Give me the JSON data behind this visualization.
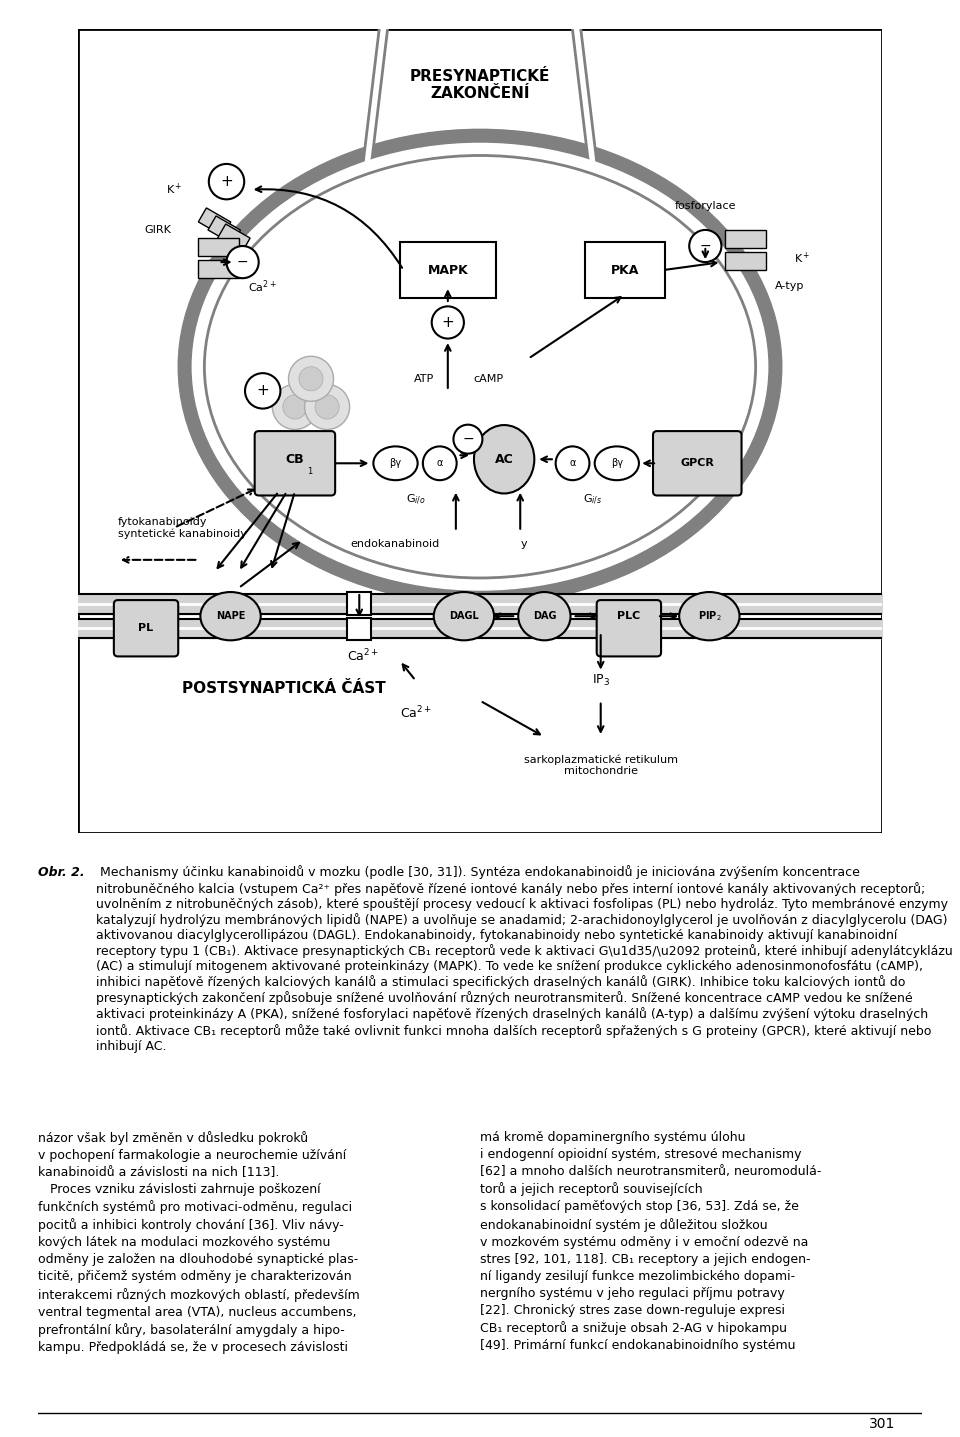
{
  "bg_color": "#ffffff",
  "border_color": "#000000",
  "page_number": "301",
  "presynaptic_label": "PRESYNAPTICKÉ\nZAKONČENÍ",
  "postsynaptic_label": "POSTSYNAPTICKÁ ČÁST",
  "caption_bold": "Obr. 2.",
  "caption_text": " Mechanismy účinku kanabinoidů v mozku (podle [30, 31]). Syntéza endokanabinoidů je iniciována zvýšením koncentrace nitrobuněčného kalcia (vstupem Ca²⁺ přes napěťově řízené iontové kanály nebo přes interní iontové kanály aktivovaných receptorů; uvolněním z nitrobuněčných zásob), které spouštějí procesy vedoucí k aktivaci fosfolipas (PL) nebo hydroláz. Tyto membránové enzymy katalyzují hydrolýzu membránových lipidů (NAPE) a uvolnůuje se anadamid; 2-arachidonoylglycerol je uvolněován z diacylglycerolu (DAG) aktivovanou diacylglycerollipázou (DAGL). Endokanabinoidy, fytokanabinoidy nebo syntetické kanabinoidy aktivují kanabinoidní receptory typu 1 (CB₁). Aktivace presynaptických CB₁ receptorů vede k aktivaci Gᴵ/ₒ proteinů, které inhibují adenylátcyklázu (AC) a stimulují mitogenem aktivované proteinkiny (MAPK). To vede ke snížení produkce cyklického adenosinmonosfotu (cAMP), inhibici napěťově řízených kalciových kanálů a stimulaci specifických draselnych kanálů (GIRK). Inhibice toku kalciových iontů do presynaptických zakončení způsobuje snížené uvolněování různých neurotransmiterů. Snížené koncentrace cAMP vedou ke snížené aktivaci proteinkiny A (PKA), snížené fosforylaci napěťově řízených draselnych kanálů (A-typ) a dalšímu zvýšení výtoku draselnych iontů. Aktivace CB₁ receptorů může také ovlivnit funkci mnoha dalších receptorů spřažených s G proteiny (GPCR), které aktivují nebo inhibují AC.",
  "col1_text": "názor však byl změněn v důsledku pokroků v pochopení farmakologie a neurochemie užívání kanabinoidů a závislosti na nich [113].\n    Proces vzniku závislosti zahrnuje poškození funkčních systémů pro motivaci-odměnu, regulaci pocitů a inhibici kontroly chování [36]. Vliv návykových látek na modulaci mozkového systému odměny je založen na dlouhodobé synaptické plasticitě, přičemž systém odměny je charakterizován interakcemi různých mozkových oblastí, především ventral tegmental area (VTA), nucleus accumbens, prefrontální kůry, basolaterální amygdaly a hipokampu. Předpokládá se, že v procesech závislosti",
  "col2_text": "má kromě dopaminergního systému úLohu i endogenní opioidní systém, stresové mechanismy [62] a mnoho dalších neurotransmiterů, neuromodultorů a jejich receptorů souvisejících s konsolidací paměťových stop [36, 53]. Zdá se, že endokanabinoidní systém je důležitou složkou v mozkovém systému odměny i v emoční odezvne na stres [92, 101, 118]. CB₁ receptory a jejich endogenní ligandy zesilují funkce mezolimbického dopaminergního systému v jeho regulaci příjmu potravy [22]. Chronický stres zase down-reguluje expresi CB₁ receptorů a snižuje obsah 2-AG v hipokampu [49]. Primární funkcí endokanabinoidního systému"
}
